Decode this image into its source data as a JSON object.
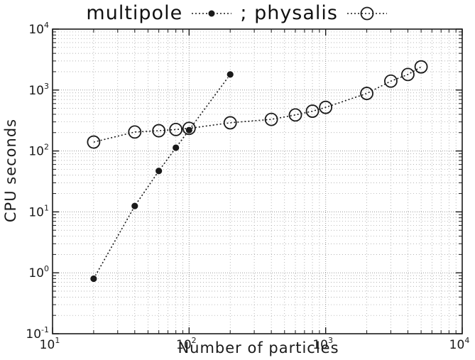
{
  "chart_data": {
    "type": "scatter",
    "title": "",
    "legend": {
      "placement": "top",
      "entries": [
        {
          "name": "multipole",
          "marker": "filled-circle",
          "line": "dotted"
        },
        {
          "name": "physalis",
          "marker": "open-circle",
          "line": "dotted"
        }
      ],
      "separator": ";"
    },
    "xlabel": "Number of particles",
    "ylabel": "CPU seconds",
    "xscale": "log",
    "yscale": "log",
    "xlim": [
      10,
      10000
    ],
    "ylim": [
      0.1,
      10000
    ],
    "x_ticks": [
      {
        "value": 10,
        "base": "10",
        "exp": "1"
      },
      {
        "value": 100,
        "base": "10",
        "exp": "2"
      },
      {
        "value": 1000,
        "base": "10",
        "exp": "3"
      },
      {
        "value": 10000,
        "base": "10",
        "exp": "4"
      }
    ],
    "y_ticks": [
      {
        "value": 0.1,
        "base": "10",
        "exp": "-1"
      },
      {
        "value": 1,
        "base": "10",
        "exp": "0"
      },
      {
        "value": 10,
        "base": "10",
        "exp": "1"
      },
      {
        "value": 100,
        "base": "10",
        "exp": "2"
      },
      {
        "value": 1000,
        "base": "10",
        "exp": "3"
      },
      {
        "value": 10000,
        "base": "10",
        "exp": "4"
      }
    ],
    "grid": true,
    "series": [
      {
        "name": "multipole",
        "marker": "filled-circle",
        "line": "dotted",
        "x": [
          20,
          40,
          60,
          80,
          100,
          200
        ],
        "y": [
          0.8,
          12.5,
          47,
          113,
          220,
          1800
        ]
      },
      {
        "name": "physalis",
        "marker": "open-circle",
        "line": "dotted",
        "x": [
          20,
          40,
          60,
          80,
          100,
          200,
          400,
          600,
          800,
          1000,
          2000,
          3000,
          4000,
          5000
        ],
        "y": [
          140,
          205,
          215,
          225,
          235,
          290,
          330,
          390,
          450,
          520,
          880,
          1400,
          1800,
          2400
        ]
      }
    ],
    "colors": {
      "ink": "#1a1a1a",
      "grid": "#9a9a9a",
      "background": "#ffffff"
    }
  }
}
